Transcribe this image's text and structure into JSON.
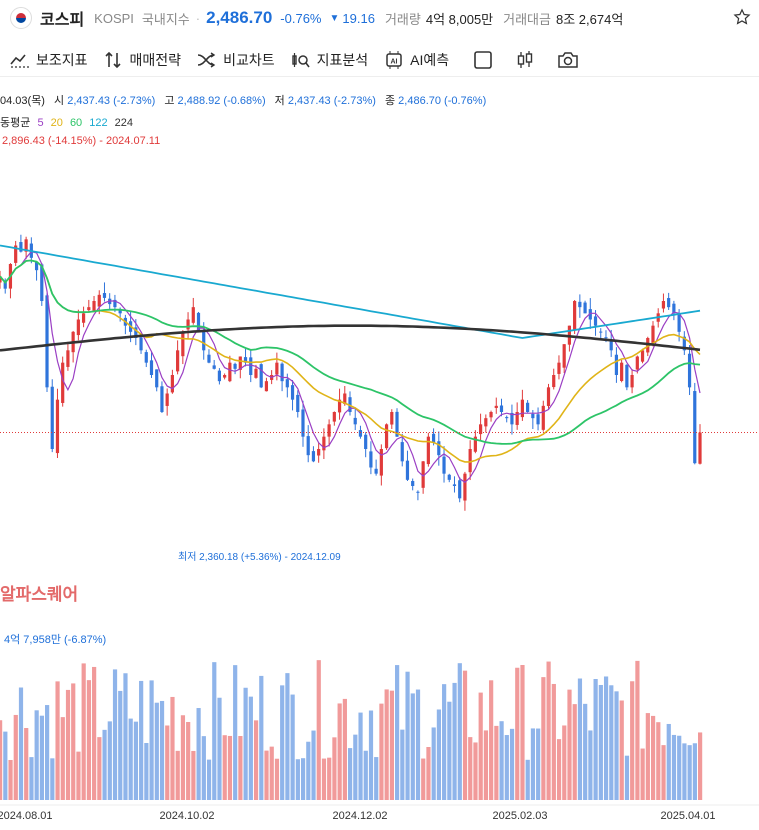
{
  "header": {
    "name": "코스피",
    "code": "KOSPI",
    "market": "국내지수",
    "price": "2,486.70",
    "change_pct": "-0.76%",
    "change_arrow": "▼",
    "change_val": "19.16",
    "volume_label": "거래량",
    "volume_val": "4억 8,005만",
    "amount_label": "거래대금",
    "amount_val": "8조 2,674억"
  },
  "toolbar": {
    "items": [
      "보조지표",
      "매매전략",
      "비교차트",
      "지표분석",
      "AI예측"
    ]
  },
  "info": {
    "date": "04.03(목)",
    "open_label": "시",
    "open_val": "2,437.43 (-2.73%)",
    "high_label": "고",
    "high_val": "2,488.92 (-0.68%)",
    "low_label": "저",
    "low_val": "2,437.43 (-2.73%)",
    "close_label": "종",
    "close_val": "2,486.70 (-0.76%)",
    "ma_label": "동평균",
    "ma_periods": [
      "5",
      "20",
      "60",
      "122",
      "224"
    ],
    "max_text": "2,896.43 (-14.15%) - 2024.07.11"
  },
  "min_annotation": "최저 2,360.18 (+5.36%) - 2024.12.09",
  "watermark": "알파스퀘어",
  "volume_info": "4억 7,958만 (-6.87%)",
  "colors": {
    "up": "#e03a3a",
    "down": "#2f74db",
    "ma5": "#9b3fc4",
    "ma20": "#e0b418",
    "ma60": "#2dc468",
    "ma122": "#19a9d0",
    "ma224": "#333333",
    "vol_up": "#f19a9a",
    "vol_down": "#8fb4ea"
  },
  "chart_data": {
    "type": "candlestick",
    "x_range": [
      "2024.07",
      "2025.04.03"
    ],
    "x_ticks": [
      "2024.08.01",
      "2024.10.02",
      "2024.12.02",
      "2025.02.03",
      "2025.04.01"
    ],
    "y_range": [
      2280,
      2880
    ],
    "last_close": 2486.7,
    "closes": [
      2740,
      2720,
      2760,
      2790,
      2780,
      2800,
      2770,
      2750,
      2700,
      2560,
      2460,
      2540,
      2600,
      2620,
      2650,
      2670,
      2680,
      2690,
      2700,
      2710,
      2705,
      2695,
      2690,
      2680,
      2660,
      2650,
      2640,
      2620,
      2600,
      2580,
      2560,
      2520,
      2550,
      2580,
      2620,
      2650,
      2670,
      2690,
      2650,
      2620,
      2600,
      2590,
      2570,
      2580,
      2600,
      2590,
      2610,
      2600,
      2580,
      2590,
      2560,
      2570,
      2580,
      2600,
      2570,
      2560,
      2540,
      2520,
      2480,
      2450,
      2440,
      2460,
      2480,
      2500,
      2520,
      2540,
      2550,
      2520,
      2500,
      2480,
      2460,
      2430,
      2420,
      2460,
      2500,
      2520,
      2480,
      2440,
      2410,
      2400,
      2390,
      2440,
      2480,
      2470,
      2450,
      2420,
      2410,
      2400,
      2380,
      2420,
      2460,
      2480,
      2500,
      2510,
      2520,
      2530,
      2520,
      2510,
      2500,
      2520,
      2540,
      2520,
      2510,
      2500,
      2530,
      2560,
      2580,
      2600,
      2630,
      2660,
      2700,
      2690,
      2680,
      2670,
      2660,
      2650,
      2640,
      2620,
      2580,
      2600,
      2560,
      2580,
      2610,
      2620,
      2640,
      2660,
      2680,
      2700,
      2690,
      2680,
      2650,
      2620,
      2560,
      2437,
      2486.7
    ],
    "ma5_desc": "5-day moving average",
    "ma224_desc": "224-day moving average",
    "volume_ylim": [
      0,
      1
    ]
  }
}
